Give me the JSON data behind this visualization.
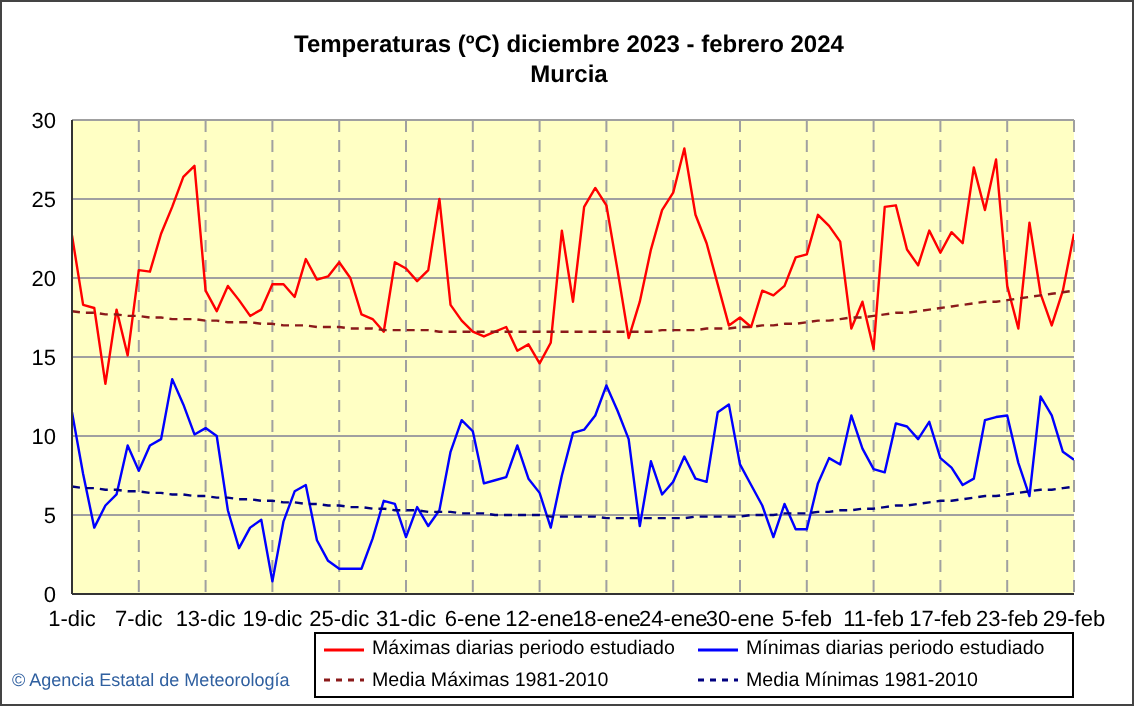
{
  "chart_data": {
    "type": "line",
    "title": "Temperaturas (ºC) diciembre 2023 - febrero 2024",
    "subtitle": "Murcia",
    "categories": [
      "1-dic",
      null,
      null,
      null,
      null,
      null,
      "7-dic",
      null,
      null,
      null,
      null,
      null,
      "13-dic",
      null,
      null,
      null,
      null,
      null,
      "19-dic",
      null,
      null,
      null,
      null,
      null,
      "25-dic",
      null,
      null,
      null,
      null,
      null,
      "31-dic",
      null,
      null,
      null,
      null,
      null,
      "6-ene",
      null,
      null,
      null,
      null,
      null,
      "12-ene",
      null,
      null,
      null,
      null,
      null,
      "18-ene",
      null,
      null,
      null,
      null,
      null,
      "24-ene",
      null,
      null,
      null,
      null,
      null,
      "30-ene",
      null,
      null,
      null,
      null,
      null,
      "5-feb",
      null,
      null,
      null,
      null,
      null,
      "11-feb",
      null,
      null,
      null,
      null,
      null,
      "17-feb",
      null,
      null,
      null,
      null,
      null,
      "23-feb",
      null,
      null,
      null,
      null,
      null,
      "29-feb"
    ],
    "series": [
      {
        "name": "Máximas diarias periodo estudiado",
        "color": "#ff0000",
        "line_style": "solid",
        "values": [
          22.7,
          18.3,
          18.1,
          13.3,
          18.0,
          15.1,
          20.5,
          20.4,
          22.8,
          24.5,
          26.4,
          27.1,
          19.2,
          17.9,
          19.5,
          18.6,
          17.6,
          18.0,
          19.6,
          19.6,
          18.8,
          21.2,
          19.9,
          20.1,
          21.0,
          20.0,
          17.7,
          17.4,
          16.6,
          21.0,
          20.6,
          19.8,
          20.5,
          25.0,
          18.3,
          17.3,
          16.6,
          16.3,
          16.6,
          16.9,
          15.4,
          15.8,
          14.6,
          15.9,
          23.0,
          18.5,
          24.5,
          25.7,
          24.6,
          20.5,
          16.2,
          18.5,
          21.8,
          24.3,
          25.4,
          28.2,
          24.0,
          22.2,
          19.6,
          17.0,
          17.5,
          16.9,
          19.2,
          18.9,
          19.5,
          21.3,
          21.5,
          24.0,
          23.3,
          22.3,
          16.8,
          18.5,
          15.5,
          24.5,
          24.6,
          21.8,
          20.8,
          23.0,
          21.6,
          22.9,
          22.2,
          27.0,
          24.3,
          27.5,
          19.5,
          16.8,
          23.5,
          19.0,
          17.0,
          19.2,
          22.8
        ]
      },
      {
        "name": "Mínimas diarias periodo estudiado",
        "color": "#0000ff",
        "line_style": "solid",
        "values": [
          11.5,
          7.6,
          4.2,
          5.6,
          6.3,
          9.4,
          7.8,
          9.4,
          9.8,
          13.6,
          12.0,
          10.1,
          10.5,
          10.0,
          5.3,
          2.9,
          4.2,
          4.7,
          0.8,
          4.6,
          6.5,
          6.9,
          3.4,
          2.1,
          1.6,
          1.6,
          1.6,
          3.5,
          5.9,
          5.7,
          3.6,
          5.5,
          4.3,
          5.3,
          9.0,
          11.0,
          10.3,
          7.0,
          7.2,
          7.4,
          9.4,
          7.3,
          6.4,
          4.2,
          7.5,
          10.2,
          10.4,
          11.3,
          13.2,
          11.6,
          9.8,
          4.3,
          8.4,
          6.3,
          7.1,
          8.7,
          7.3,
          7.1,
          11.5,
          12.0,
          8.2,
          6.9,
          5.6,
          3.6,
          5.7,
          4.1,
          4.1,
          7.0,
          8.6,
          8.2,
          11.3,
          9.2,
          7.9,
          7.7,
          10.8,
          10.6,
          9.8,
          10.9,
          8.6,
          8.0,
          6.9,
          7.3,
          11.0,
          11.2,
          11.3,
          8.3,
          6.2,
          12.5,
          11.3,
          9.0,
          8.5
        ]
      },
      {
        "name": "Media Máximas 1981-2010",
        "color": "#8b1a1a",
        "line_style": "dashed",
        "values": [
          17.9,
          17.8,
          17.8,
          17.7,
          17.7,
          17.6,
          17.6,
          17.5,
          17.5,
          17.4,
          17.4,
          17.4,
          17.3,
          17.3,
          17.2,
          17.2,
          17.2,
          17.1,
          17.1,
          17.0,
          17.0,
          17.0,
          16.9,
          16.9,
          16.9,
          16.8,
          16.8,
          16.8,
          16.7,
          16.7,
          16.7,
          16.7,
          16.7,
          16.6,
          16.6,
          16.6,
          16.6,
          16.6,
          16.6,
          16.6,
          16.6,
          16.6,
          16.6,
          16.6,
          16.6,
          16.6,
          16.6,
          16.6,
          16.6,
          16.6,
          16.6,
          16.6,
          16.6,
          16.7,
          16.7,
          16.7,
          16.7,
          16.8,
          16.8,
          16.8,
          16.9,
          16.9,
          17.0,
          17.0,
          17.1,
          17.1,
          17.2,
          17.3,
          17.3,
          17.4,
          17.5,
          17.5,
          17.6,
          17.7,
          17.8,
          17.8,
          17.9,
          18.0,
          18.1,
          18.2,
          18.3,
          18.4,
          18.5,
          18.5,
          18.6,
          18.7,
          18.8,
          18.9,
          19.0,
          19.1,
          19.2
        ]
      },
      {
        "name": "Media Mínimas 1981-2010",
        "color": "#000080",
        "line_style": "dashed",
        "values": [
          6.8,
          6.7,
          6.7,
          6.6,
          6.6,
          6.5,
          6.5,
          6.4,
          6.4,
          6.3,
          6.3,
          6.2,
          6.2,
          6.1,
          6.1,
          6.0,
          6.0,
          5.9,
          5.9,
          5.8,
          5.8,
          5.7,
          5.7,
          5.6,
          5.6,
          5.5,
          5.5,
          5.4,
          5.4,
          5.3,
          5.3,
          5.3,
          5.2,
          5.2,
          5.2,
          5.1,
          5.1,
          5.1,
          5.0,
          5.0,
          5.0,
          5.0,
          5.0,
          4.9,
          4.9,
          4.9,
          4.9,
          4.9,
          4.8,
          4.8,
          4.8,
          4.8,
          4.8,
          4.8,
          4.8,
          4.8,
          4.9,
          4.9,
          4.9,
          4.9,
          4.9,
          5.0,
          5.0,
          5.0,
          5.1,
          5.1,
          5.1,
          5.2,
          5.2,
          5.3,
          5.3,
          5.4,
          5.4,
          5.5,
          5.6,
          5.6,
          5.7,
          5.8,
          5.9,
          5.9,
          6.0,
          6.1,
          6.2,
          6.2,
          6.3,
          6.4,
          6.5,
          6.6,
          6.6,
          6.7,
          6.8
        ]
      }
    ],
    "ylim": [
      0,
      30
    ],
    "yticks": [
      0,
      5,
      10,
      15,
      20,
      25,
      30
    ],
    "grid": true,
    "legend": "bottom",
    "annotations": [
      "© Agencia Estatal de Meteorología"
    ]
  }
}
